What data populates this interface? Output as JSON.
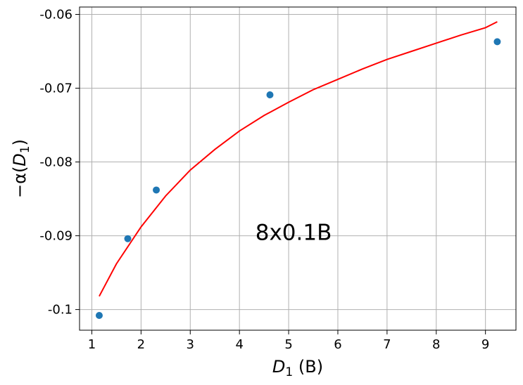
{
  "chart_data": {
    "type": "scatter",
    "xlabel": {
      "var": "D",
      "sub": "1",
      "unit": " (B)"
    },
    "ylabel": {
      "prefix": "−α(",
      "var": "D",
      "sub": "1",
      "suffix": ")"
    },
    "annotation": {
      "text": "8x0.1B",
      "x": 5.1,
      "y": -0.0895
    },
    "xlim": [
      0.75,
      9.62
    ],
    "ylim": [
      -0.1028,
      -0.059
    ],
    "xticks": [
      1,
      2,
      3,
      4,
      5,
      6,
      7,
      8,
      9
    ],
    "xtick_labels": [
      "1",
      "2",
      "3",
      "4",
      "5",
      "6",
      "7",
      "8",
      "9"
    ],
    "yticks": [
      -0.1,
      -0.09,
      -0.08,
      -0.07,
      -0.06
    ],
    "ytick_labels": [
      "-0.1",
      "-0.09",
      "-0.08",
      "-0.07",
      "-0.06"
    ],
    "grid": true,
    "points": {
      "color": "#1f77b4",
      "x": [
        1.15,
        1.73,
        2.31,
        4.62,
        9.24
      ],
      "y": [
        -0.1008,
        -0.0904,
        -0.0838,
        -0.0709,
        -0.0637
      ]
    },
    "fit": {
      "color": "#ff0000",
      "x": [
        1.15,
        1.5,
        2.0,
        2.5,
        3.0,
        3.5,
        4.0,
        4.5,
        5.0,
        5.5,
        6.0,
        6.5,
        7.0,
        7.5,
        8.0,
        8.5,
        9.0,
        9.24
      ],
      "y": [
        -0.0982,
        -0.0938,
        -0.0888,
        -0.0846,
        -0.0811,
        -0.0783,
        -0.0758,
        -0.0737,
        -0.0719,
        -0.0702,
        -0.0688,
        -0.0674,
        -0.0661,
        -0.065,
        -0.0639,
        -0.0628,
        -0.0618,
        -0.061
      ]
    }
  }
}
